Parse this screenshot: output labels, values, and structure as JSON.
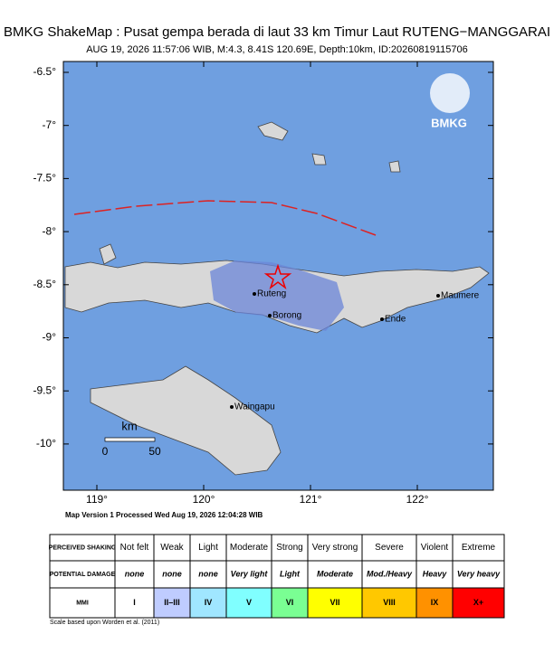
{
  "header": {
    "title": "BMKG ShakeMap : Pusat gempa berada di laut 33 km Timur Laut RUTENG−MANGGARAI",
    "subtitle": "AUG 19, 2026 11:57:06 WIB, M:4.3, 8.41S 120.69E, Depth:10km, ID:20260819115706"
  },
  "map": {
    "lat_ticks": [
      {
        "value": -6.5,
        "label": "-6.5°"
      },
      {
        "value": -7,
        "label": "-7°"
      },
      {
        "value": -7.5,
        "label": "-7.5°"
      },
      {
        "value": -8,
        "label": "-8°"
      },
      {
        "value": -8.5,
        "label": "-8.5°"
      },
      {
        "value": -9,
        "label": "-9°"
      },
      {
        "value": -9.5,
        "label": "-9.5°"
      },
      {
        "value": -10,
        "label": "-10°"
      }
    ],
    "lon_ticks": [
      {
        "value": 119,
        "label": "119°"
      },
      {
        "value": 120,
        "label": "120°"
      },
      {
        "value": 121,
        "label": "121°"
      },
      {
        "value": 122,
        "label": "122°"
      }
    ],
    "cities": [
      "Ruteng",
      "Borong",
      "Ende",
      "Maumere",
      "Waingapu"
    ],
    "logo": "BMKG",
    "scale": {
      "unit": "km",
      "labels": [
        "0",
        "50"
      ]
    }
  },
  "footer": {
    "processed": "Map Version 1 Processed Wed Aug 19, 2026 12:04:28 WIB",
    "note": "Scale based upon Worden et al. (2011)"
  },
  "legend": {
    "row_headers": [
      "PERCEIVED SHAKING",
      "POTENTIAL DAMAGE",
      "MMI"
    ],
    "shaking": [
      "Not felt",
      "Weak",
      "Light",
      "Moderate",
      "Strong",
      "Very strong",
      "Severe",
      "Violent",
      "Extreme"
    ],
    "damage": [
      "none",
      "none",
      "none",
      "Very light",
      "Light",
      "Moderate",
      "Mod./Heavy",
      "Heavy",
      "Very heavy"
    ],
    "mmi": [
      "I",
      "II–III",
      "IV",
      "V",
      "VI",
      "VII",
      "VIII",
      "IX",
      "X+"
    ],
    "colors": [
      "#ffffff",
      "#bfccff",
      "#a0e6ff",
      "#80ffff",
      "#7aff93",
      "#ffff00",
      "#ffc800",
      "#ff9100",
      "#ff0000"
    ]
  }
}
